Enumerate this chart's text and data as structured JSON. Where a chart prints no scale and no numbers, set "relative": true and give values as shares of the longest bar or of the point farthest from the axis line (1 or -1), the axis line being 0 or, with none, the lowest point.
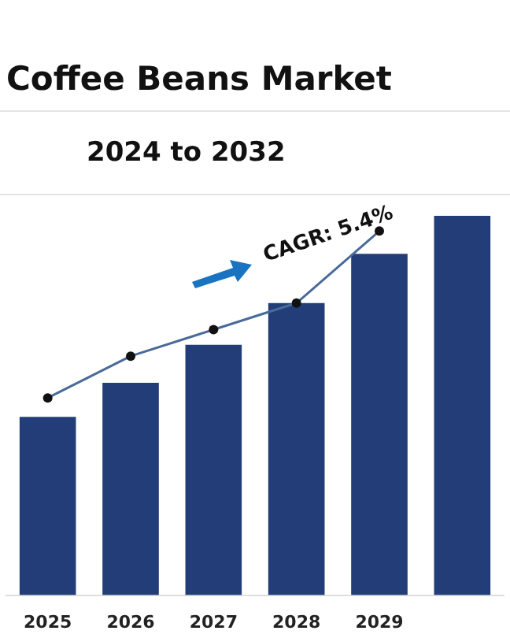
{
  "chart_data": {
    "type": "bar",
    "title": "Coffee Beans Market",
    "subtitle": "2024 to 2032",
    "relative": true,
    "categories": [
      "2025",
      "2026",
      "2027",
      "2028",
      "2029",
      null
    ],
    "series": [
      {
        "color": "#233d78",
        "values": [
          0.47,
          0.56,
          0.66,
          0.77,
          0.9,
          1
        ]
      },
      {
        "type": "line",
        "color": "#4a6a9a",
        "values": [
          0.52,
          0.63,
          0.7,
          0.77,
          0.96,
          null
        ]
      }
    ],
    "annotations": [
      "CAGR: 5.4%"
    ],
    "marker": "circle",
    "legend": false
  }
}
